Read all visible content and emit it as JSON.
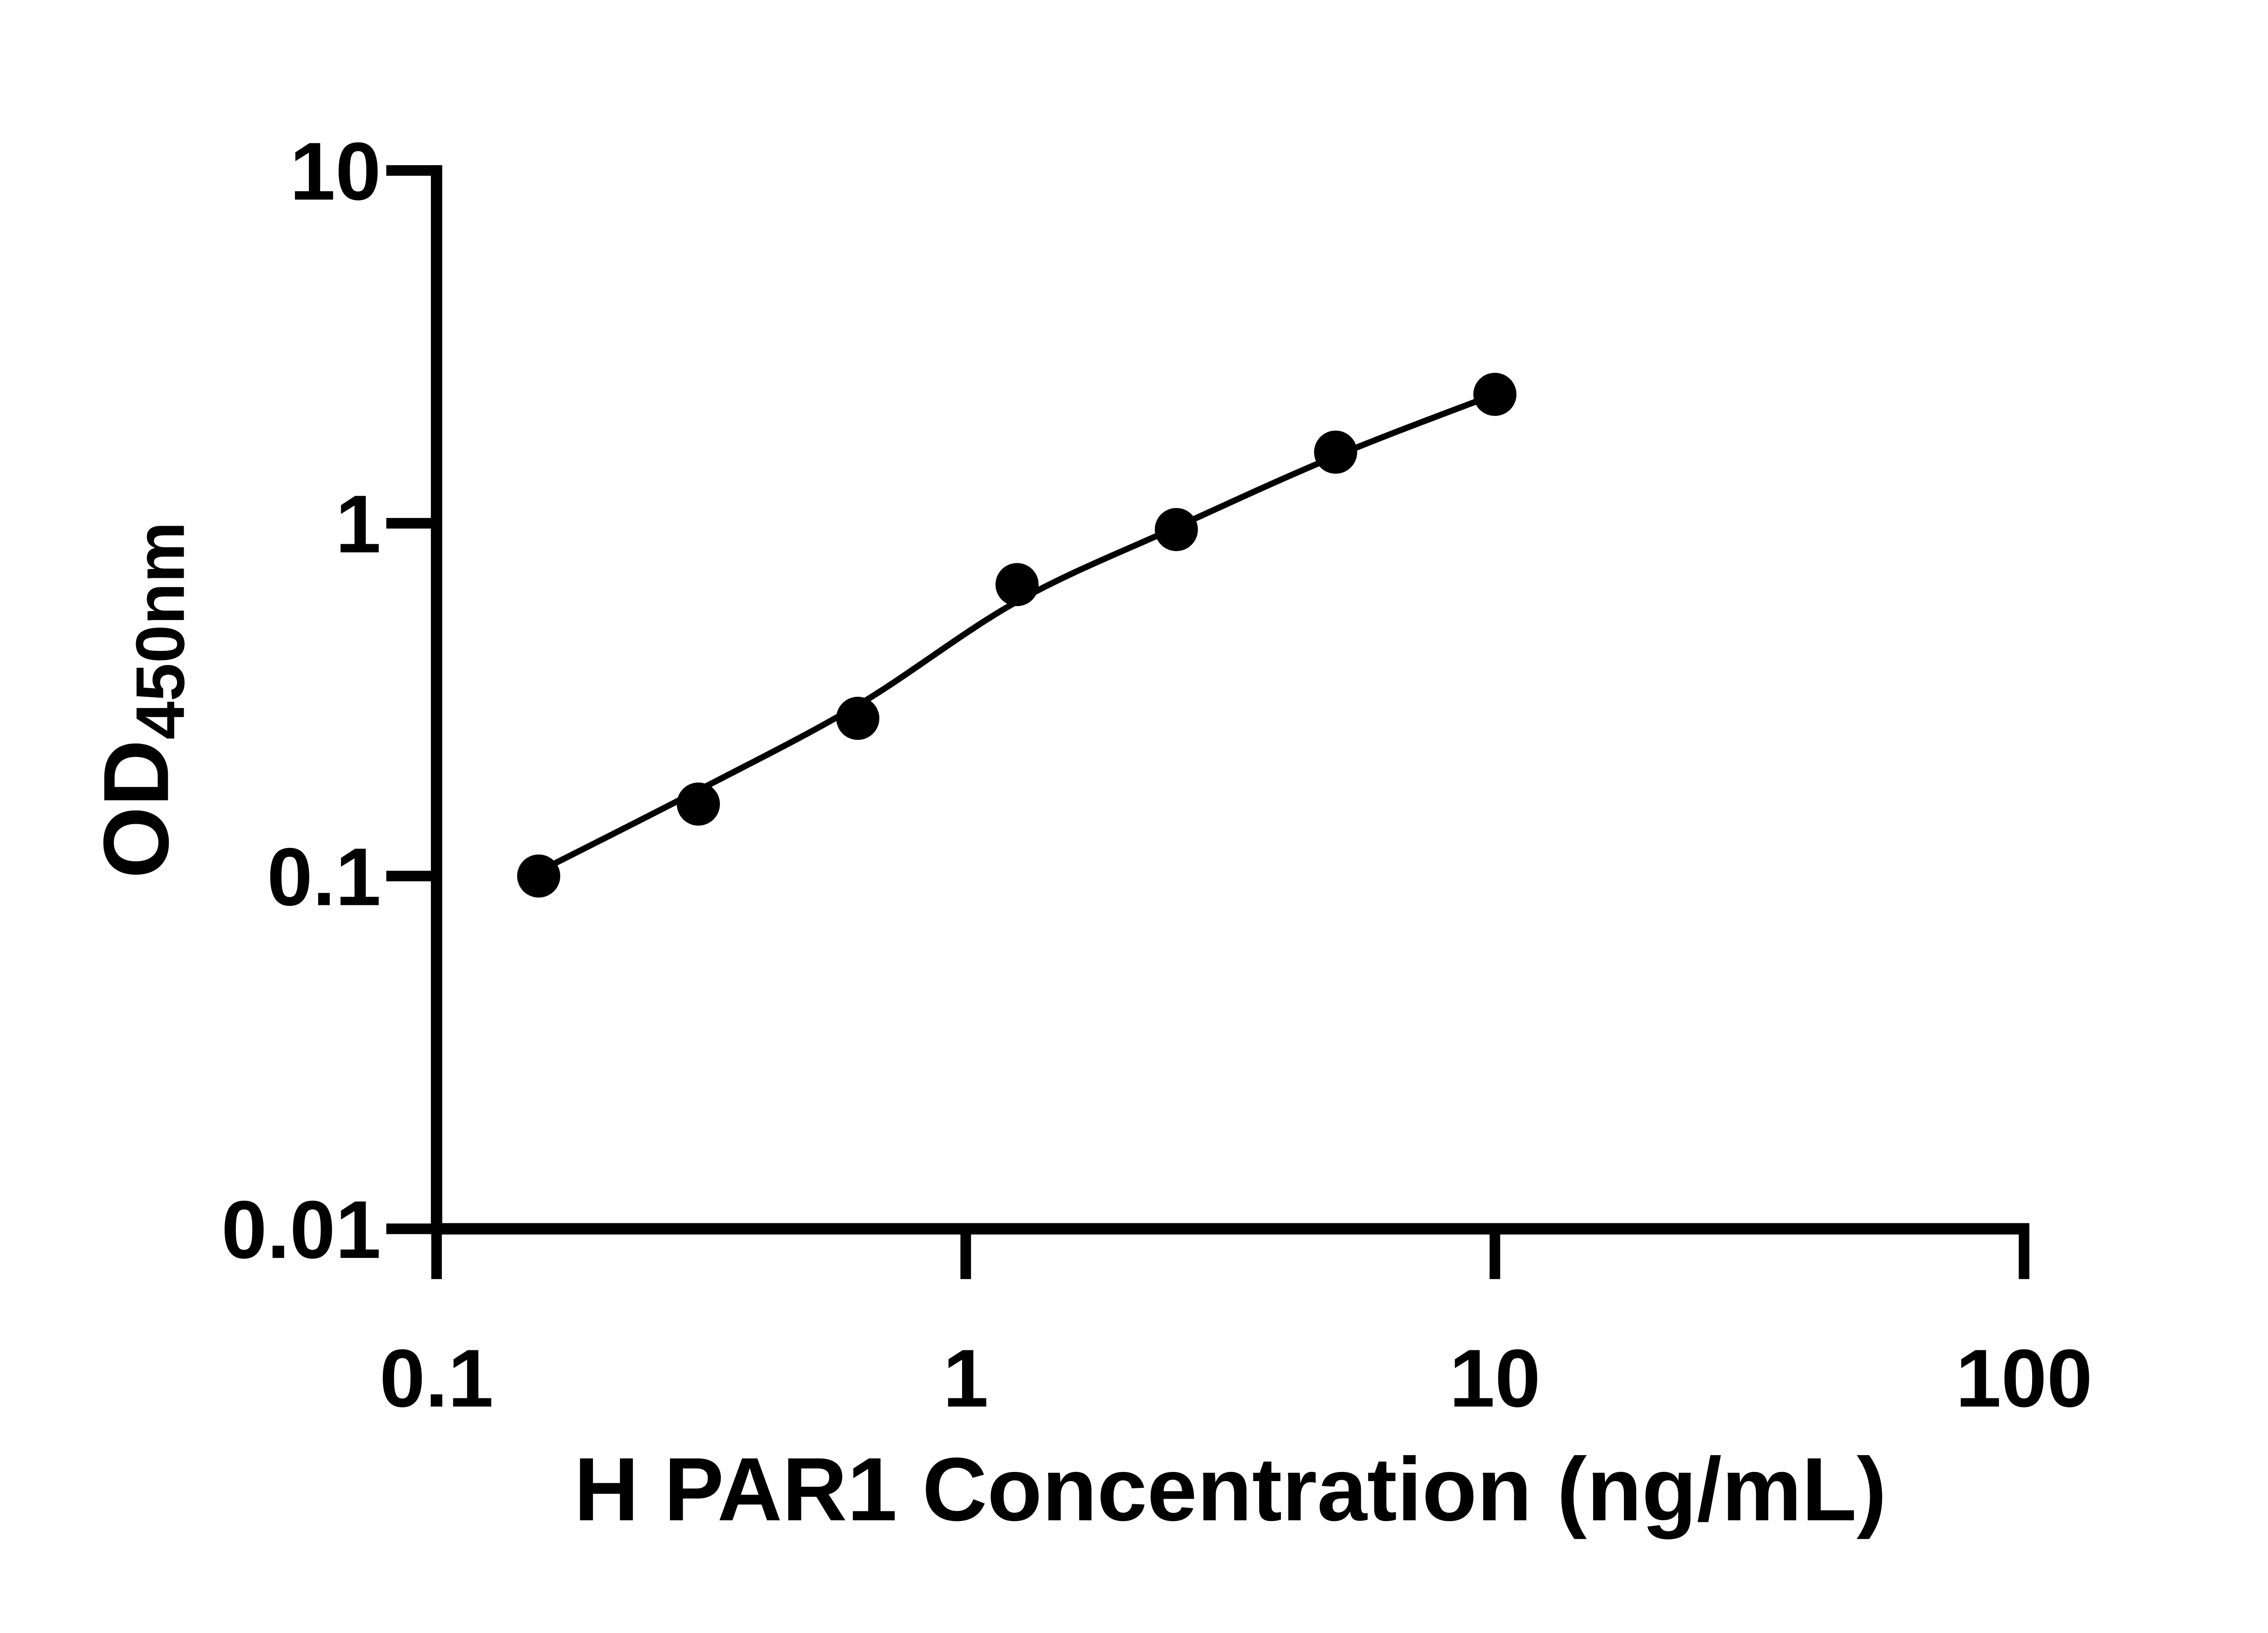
{
  "page": {
    "background_color": "#ffffff",
    "foreground_color": "#000000"
  },
  "chart_data": {
    "type": "scatter",
    "title": "",
    "xlabel": "H PAR1 Concentration (ng/mL)",
    "ylabel_main": "OD",
    "ylabel_sub": "450nm",
    "x_scale": "log",
    "y_scale": "log",
    "xlim": [
      0.1,
      100
    ],
    "ylim": [
      0.01,
      10
    ],
    "x_ticks": [
      0.1,
      1,
      10,
      100
    ],
    "x_tick_labels": [
      "0.1",
      "1",
      "10",
      "100"
    ],
    "y_ticks": [
      0.01,
      0.1,
      1,
      10
    ],
    "y_tick_labels": [
      "0.01",
      "0.1",
      "1",
      "10"
    ],
    "grid": false,
    "legend": false,
    "marker_color": "#000000",
    "line_color": "#000000",
    "axis_color": "#000000",
    "series": [
      {
        "name": "standard-curve-points",
        "marker": "circle",
        "points": [
          {
            "x": 0.156,
            "y": 0.1
          },
          {
            "x": 0.3125,
            "y": 0.16
          },
          {
            "x": 0.625,
            "y": 0.28
          },
          {
            "x": 1.25,
            "y": 0.67
          },
          {
            "x": 2.5,
            "y": 0.96
          },
          {
            "x": 5,
            "y": 1.59
          },
          {
            "x": 10,
            "y": 2.32
          }
        ]
      }
    ],
    "fit_curve": [
      {
        "x": 0.156,
        "y": 0.103
      },
      {
        "x": 0.3125,
        "y": 0.175
      },
      {
        "x": 0.625,
        "y": 0.305
      },
      {
        "x": 1.25,
        "y": 0.6
      },
      {
        "x": 2.5,
        "y": 0.975
      },
      {
        "x": 5,
        "y": 1.55
      },
      {
        "x": 10,
        "y": 2.32
      }
    ]
  }
}
